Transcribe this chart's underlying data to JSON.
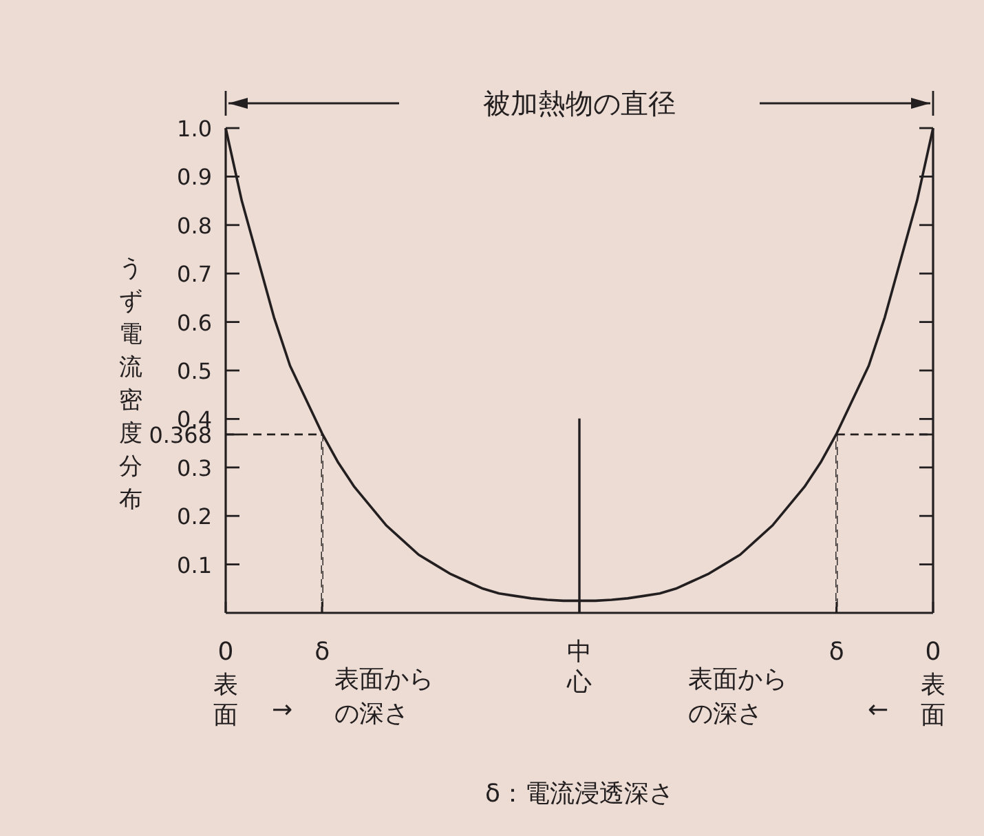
{
  "chart_data": {
    "type": "line",
    "title": "被加熱物の直径",
    "ylabel": "うず電流密度分布",
    "xlabel": "δ：電流浸透深さ",
    "annotations": [
      "表面",
      "→",
      "表面からの深さ",
      "表面からの深さ",
      "←",
      "表面"
    ],
    "categories": [
      "0",
      null,
      null,
      null,
      null,
      null,
      "δ",
      null,
      null,
      null,
      null,
      null,
      null,
      null,
      null,
      null,
      null,
      null,
      null,
      null,
      null,
      null,
      "中心",
      null,
      null,
      null,
      null,
      null,
      null,
      null,
      null,
      null,
      null,
      null,
      null,
      null,
      null,
      null,
      "δ",
      null,
      null,
      null,
      null,
      null,
      "0"
    ],
    "ylim": [
      0,
      1.0
    ],
    "yticks": [
      0.1,
      0.2,
      0.3,
      {
        "value": 0.368,
        "label": "0.368"
      },
      0.4,
      0.5,
      0.6,
      0.7,
      0.8,
      0.9,
      {
        "value": 1.0,
        "label": "1.0"
      }
    ],
    "series": [
      {
        "color": "#231f20",
        "line_style": "solid",
        "values": [
          1.0,
          0.85,
          0.73,
          0.61,
          0.51,
          0.44,
          0.37,
          0.31,
          0.26,
          0.22,
          0.18,
          0.15,
          0.12,
          0.1,
          0.08,
          0.065,
          0.05,
          0.04,
          0.035,
          0.03,
          0.027,
          0.025,
          0.025,
          0.025,
          0.027,
          0.03,
          0.035,
          0.04,
          0.05,
          0.065,
          0.08,
          0.1,
          0.12,
          0.15,
          0.18,
          0.22,
          0.26,
          0.31,
          0.37,
          0.44,
          0.51,
          0.61,
          0.73,
          0.85,
          1.0
        ]
      },
      {
        "color": "#231f20",
        "line_style": "dashed",
        "values": [
          0.368,
          0.368,
          0.368,
          0.368,
          0.368,
          0.368,
          0.368,
          null,
          null,
          null,
          null,
          null,
          null,
          null,
          null,
          null,
          null,
          null,
          null,
          null,
          null,
          null,
          null,
          null,
          null,
          null,
          null,
          null,
          null,
          null,
          null,
          null,
          null,
          null,
          null,
          null,
          null,
          null,
          0.368,
          0.368,
          0.368,
          0.368,
          0.368,
          0.368,
          0.368
        ]
      },
      {
        "type": "bar",
        "color": "#231f20",
        "line_style": "dashed",
        "values": [
          null,
          null,
          null,
          null,
          null,
          null,
          0.368,
          null,
          null,
          null,
          null,
          null,
          null,
          null,
          null,
          null,
          null,
          null,
          null,
          null,
          null,
          null,
          null,
          null,
          null,
          null,
          null,
          null,
          null,
          null,
          null,
          null,
          null,
          null,
          null,
          null,
          null,
          null,
          0.368,
          null,
          null,
          null,
          null,
          null,
          null
        ]
      },
      {
        "type": "bar",
        "color": "#231f20",
        "line_style": "solid",
        "values": [
          null,
          null,
          null,
          null,
          null,
          null,
          null,
          null,
          null,
          null,
          null,
          null,
          null,
          null,
          null,
          null,
          null,
          null,
          null,
          null,
          null,
          null,
          0.4,
          null,
          null,
          null,
          null,
          null,
          null,
          null,
          null,
          null,
          null,
          null,
          null,
          null,
          null,
          null,
          null,
          null,
          null,
          null,
          null,
          null,
          null
        ]
      }
    ]
  }
}
